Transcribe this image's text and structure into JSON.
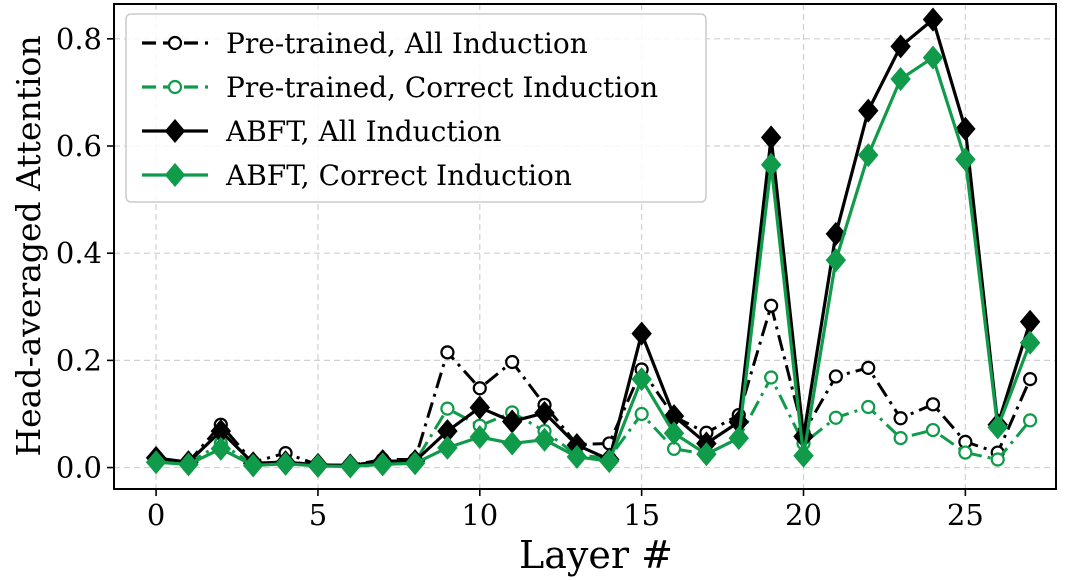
{
  "chart_data": {
    "type": "line",
    "xlabel": "Layer #",
    "ylabel": "Head-averaged Attention",
    "xlim": [
      -1.3,
      27.8
    ],
    "ylim": [
      -0.04,
      0.865
    ],
    "xticks": [
      0,
      5,
      10,
      15,
      20,
      25
    ],
    "xtick_labels": [
      "0",
      "5",
      "10",
      "15",
      "20",
      "25"
    ],
    "yticks": [
      0.0,
      0.2,
      0.4,
      0.6,
      0.8
    ],
    "ytick_labels": [
      "0.0",
      "0.2",
      "0.4",
      "0.6",
      "0.8"
    ],
    "grid": true,
    "legend_position": "top-left",
    "x": [
      0,
      1,
      2,
      3,
      4,
      5,
      6,
      7,
      8,
      9,
      10,
      11,
      12,
      13,
      14,
      15,
      16,
      17,
      18,
      19,
      20,
      21,
      22,
      23,
      24,
      25,
      26,
      27
    ],
    "series": [
      {
        "name": "Pre-trained, All Induction",
        "color": "#000000",
        "line_style": "dashdot",
        "marker": "open-circle",
        "values": [
          0.015,
          0.01,
          0.08,
          0.01,
          0.027,
          0.005,
          0.004,
          0.015,
          0.015,
          0.215,
          0.148,
          0.197,
          0.117,
          0.043,
          0.045,
          0.183,
          0.095,
          0.065,
          0.098,
          0.302,
          0.065,
          0.17,
          0.186,
          0.092,
          0.118,
          0.048,
          0.028,
          0.165
        ]
      },
      {
        "name": "Pre-trained, Correct Induction",
        "color": "#109b4a",
        "line_style": "dashdot",
        "marker": "open-circle",
        "values": [
          0.01,
          0.008,
          0.045,
          0.006,
          0.012,
          0.004,
          0.003,
          0.01,
          0.01,
          0.11,
          0.078,
          0.103,
          0.068,
          0.023,
          0.018,
          0.1,
          0.035,
          0.025,
          0.055,
          0.168,
          0.045,
          0.093,
          0.113,
          0.055,
          0.07,
          0.028,
          0.015,
          0.088
        ]
      },
      {
        "name": "ABFT, All Induction",
        "color": "#000000",
        "line_style": "solid",
        "marker": "filled-diamond",
        "values": [
          0.018,
          0.01,
          0.068,
          0.008,
          0.01,
          0.005,
          0.004,
          0.012,
          0.012,
          0.068,
          0.112,
          0.086,
          0.102,
          0.042,
          0.015,
          0.25,
          0.096,
          0.045,
          0.085,
          0.616,
          0.058,
          0.436,
          0.666,
          0.786,
          0.836,
          0.632,
          0.08,
          0.272
        ]
      },
      {
        "name": "ABFT, Correct Induction",
        "color": "#109b4a",
        "line_style": "solid",
        "marker": "filled-diamond",
        "values": [
          0.01,
          0.006,
          0.035,
          0.004,
          0.007,
          0.003,
          0.002,
          0.006,
          0.008,
          0.037,
          0.057,
          0.045,
          0.052,
          0.02,
          0.012,
          0.165,
          0.064,
          0.025,
          0.055,
          0.565,
          0.022,
          0.387,
          0.583,
          0.725,
          0.765,
          0.575,
          0.075,
          0.233
        ]
      }
    ]
  }
}
